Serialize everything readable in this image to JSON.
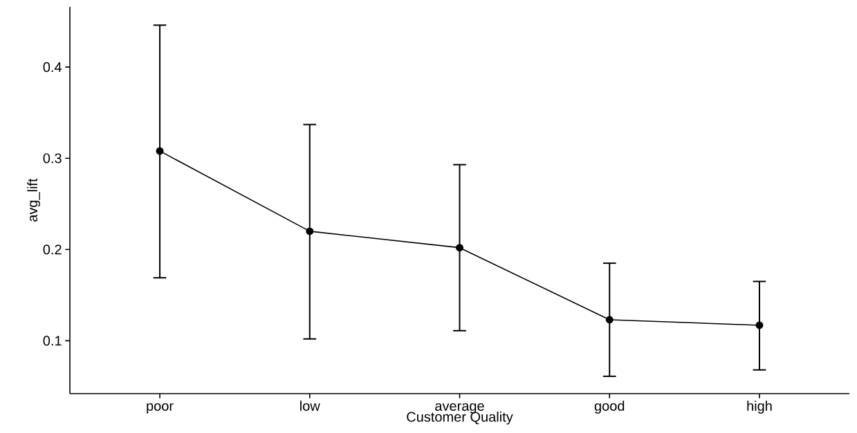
{
  "chart_data": {
    "type": "line",
    "xlabel": "Customer Quality",
    "ylabel": "avg_lift",
    "categories": [
      "poor",
      "low",
      "average",
      "good",
      "high"
    ],
    "series": [
      {
        "color": "#000000",
        "values": [
          0.308,
          0.22,
          0.202,
          0.123,
          0.117
        ],
        "errors": [
          [
            0.169,
            0.446
          ],
          [
            0.102,
            0.337
          ],
          [
            0.111,
            0.293
          ],
          [
            0.061,
            0.185
          ],
          [
            0.068,
            0.165
          ]
        ]
      }
    ],
    "ylim": [
      0.042,
      0.466
    ],
    "yticks": [
      0.1,
      0.2,
      0.3,
      0.4
    ],
    "grid": false,
    "marker": "circle",
    "line_style": "solid"
  }
}
